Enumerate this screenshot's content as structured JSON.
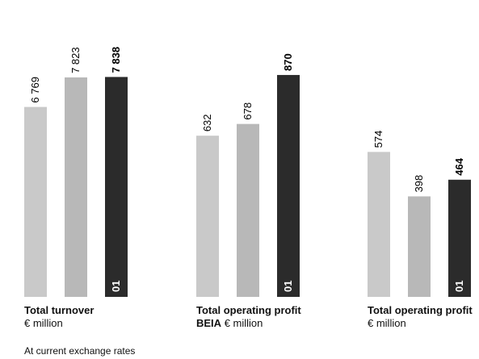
{
  "chart_data": [
    {
      "type": "bar",
      "title": "Total turnover",
      "unit": "€ million",
      "categories": [
        null,
        null,
        "01"
      ],
      "values": [
        6769,
        7823,
        7838
      ],
      "value_labels": [
        "6 769",
        "7 823",
        "7 838"
      ],
      "colors": [
        "#c9c9c9",
        "#b8b8b8",
        "#2b2b2b"
      ],
      "ylim": [
        0,
        9000
      ]
    },
    {
      "type": "bar",
      "title": "Total operating profit BEIA",
      "unit": "€ million",
      "categories": [
        null,
        null,
        "01"
      ],
      "values": [
        632,
        678,
        870
      ],
      "colors": [
        "#c9c9c9",
        "#b8b8b8",
        "#2b2b2b"
      ],
      "ylim": [
        0,
        990
      ]
    },
    {
      "type": "bar",
      "title": "Total operating profit",
      "unit": "€ million",
      "categories": [
        null,
        null,
        "01"
      ],
      "values": [
        574,
        398,
        464
      ],
      "colors": [
        "#c9c9c9",
        "#b8b8b8",
        "#2b2b2b"
      ],
      "ylim": [
        0,
        1000
      ]
    }
  ],
  "footnote": "At current exchange rates"
}
